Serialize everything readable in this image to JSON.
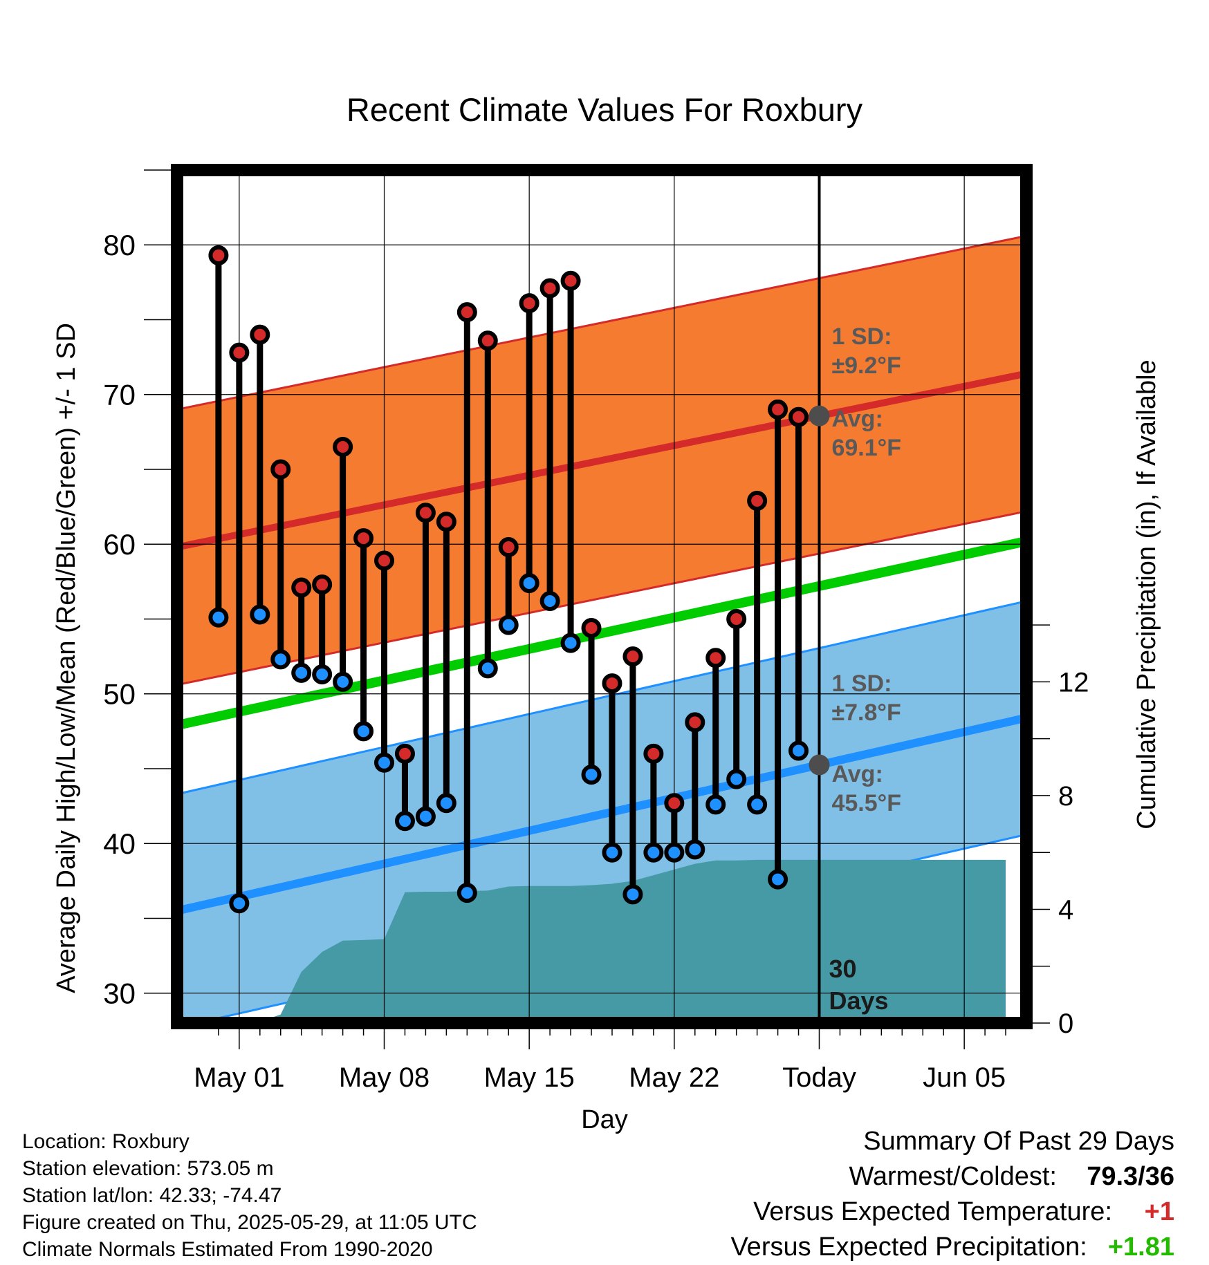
{
  "chart_data": {
    "type": "line",
    "title": "Recent Climate Values For Roxbury",
    "xlabel": "Day",
    "ylabel_left": "Average Daily High/Low/Mean (Red/Blue/Green) +/- 1 SD",
    "ylabel_right": "Cumulative Precipitation (in), If Available",
    "ylim_left": [
      28,
      85
    ],
    "ylim_right": [
      0,
      30
    ],
    "yticks_left": [
      30,
      40,
      50,
      60,
      70,
      80
    ],
    "yticks_right": [
      0,
      4,
      8,
      12
    ],
    "grid": true,
    "x_ticks": [
      {
        "day": 3,
        "label": "May 01"
      },
      {
        "day": 10,
        "label": "May 08"
      },
      {
        "day": 17,
        "label": "May 15"
      },
      {
        "day": 24,
        "label": "May 22"
      },
      {
        "day": 31,
        "label": "Today"
      },
      {
        "day": 38,
        "label": "Jun 05"
      }
    ],
    "today_day": 31,
    "today_marker_label": [
      "30",
      "Days"
    ],
    "daily_highs_lows": [
      {
        "day": 2,
        "high": 79.3,
        "low": 55.1
      },
      {
        "day": 3,
        "high": 72.8,
        "low": 36.0
      },
      {
        "day": 4,
        "high": 74.0,
        "low": 55.3
      },
      {
        "day": 5,
        "high": 65.0,
        "low": 52.3
      },
      {
        "day": 6,
        "high": 57.1,
        "low": 51.4
      },
      {
        "day": 7,
        "high": 57.3,
        "low": 51.3
      },
      {
        "day": 8,
        "high": 66.5,
        "low": 50.8
      },
      {
        "day": 9,
        "high": 60.4,
        "low": 47.5
      },
      {
        "day": 10,
        "high": 58.9,
        "low": 45.4
      },
      {
        "day": 11,
        "high": 46.0,
        "low": 41.5
      },
      {
        "day": 12,
        "high": 62.1,
        "low": 41.8
      },
      {
        "day": 13,
        "high": 61.5,
        "low": 42.7
      },
      {
        "day": 14,
        "high": 75.5,
        "low": 36.7
      },
      {
        "day": 15,
        "high": 73.6,
        "low": 51.7
      },
      {
        "day": 16,
        "high": 59.8,
        "low": 54.6
      },
      {
        "day": 17,
        "high": 76.1,
        "low": 57.4
      },
      {
        "day": 18,
        "high": 77.1,
        "low": 56.2
      },
      {
        "day": 19,
        "high": 77.6,
        "low": 53.4
      },
      {
        "day": 20,
        "high": 54.4,
        "low": 44.6
      },
      {
        "day": 21,
        "high": 50.7,
        "low": 39.4
      },
      {
        "day": 22,
        "high": 52.5,
        "low": 36.6
      },
      {
        "day": 23,
        "high": 46.0,
        "low": 39.4
      },
      {
        "day": 24,
        "high": 42.7,
        "low": 39.4
      },
      {
        "day": 25,
        "high": 48.1,
        "low": 39.6
      },
      {
        "day": 26,
        "high": 52.4,
        "low": 42.6
      },
      {
        "day": 27,
        "high": 55.0,
        "low": 44.3
      },
      {
        "day": 28,
        "high": 62.9,
        "low": 42.6
      },
      {
        "day": 29,
        "high": 69.0,
        "low": 37.6
      },
      {
        "day": 30,
        "high": 68.5,
        "low": 46.2
      }
    ],
    "normal_high": {
      "start": 59.8,
      "end": 71.4,
      "sd": 9.2
    },
    "normal_low": {
      "start": 35.5,
      "end": 48.4,
      "sd": 7.8
    },
    "normal_mean": {
      "start": 47.9,
      "end": 60.2
    },
    "cumulative_precip": [
      {
        "day": 3,
        "value": 0.0
      },
      {
        "day": 4,
        "value": 0.05
      },
      {
        "day": 5,
        "value": 0.3
      },
      {
        "day": 6,
        "value": 1.8
      },
      {
        "day": 7,
        "value": 2.5
      },
      {
        "day": 8,
        "value": 2.9
      },
      {
        "day": 9,
        "value": 2.92
      },
      {
        "day": 10,
        "value": 2.95
      },
      {
        "day": 11,
        "value": 4.6
      },
      {
        "day": 12,
        "value": 4.62
      },
      {
        "day": 13,
        "value": 4.62
      },
      {
        "day": 14,
        "value": 4.64
      },
      {
        "day": 15,
        "value": 4.66
      },
      {
        "day": 16,
        "value": 4.8
      },
      {
        "day": 17,
        "value": 4.82
      },
      {
        "day": 18,
        "value": 4.82
      },
      {
        "day": 19,
        "value": 4.82
      },
      {
        "day": 20,
        "value": 4.85
      },
      {
        "day": 21,
        "value": 4.9
      },
      {
        "day": 22,
        "value": 5.0
      },
      {
        "day": 23,
        "value": 5.2
      },
      {
        "day": 24,
        "value": 5.4
      },
      {
        "day": 25,
        "value": 5.6
      },
      {
        "day": 26,
        "value": 5.72
      },
      {
        "day": 27,
        "value": 5.72
      },
      {
        "day": 28,
        "value": 5.74
      },
      {
        "day": 29,
        "value": 5.74
      },
      {
        "day": 30,
        "value": 5.74
      },
      {
        "day": 40,
        "value": 5.74
      }
    ],
    "annotations": {
      "high_sd": [
        "1 SD:",
        "±9.2°F"
      ],
      "high_avg": [
        "Avg:",
        "69.1°F"
      ],
      "low_sd": [
        "1 SD:",
        "±7.8°F"
      ],
      "low_avg": [
        "Avg:",
        "45.5°F"
      ]
    },
    "colors": {
      "high_band": "#f47b30",
      "high_line": "#d42a2a",
      "low_band": "#80bfe6",
      "low_line": "#1e90ff",
      "mean_line": "#00cc00",
      "precip": "#469aa5",
      "high_dot": "#d42a2a",
      "low_dot": "#1e90ff",
      "avg_dot": "#4d4d4d",
      "annotation_text": "#595959"
    }
  },
  "footer": {
    "location": "Location: Roxbury",
    "elevation": "Station elevation: 573.05 m",
    "latlon": "Station lat/lon: 42.33; -74.47",
    "created": "Figure created on Thu, 2025-05-29, at 11:05 UTC",
    "normals": "Climate Normals Estimated From 1990-2020"
  },
  "summary": {
    "title": "Summary Of Past 29 Days",
    "warmest_label": "Warmest/Coldest:",
    "warmest_value": "79.3/36",
    "temp_label": "Versus Expected Temperature:",
    "temp_value": "+1",
    "temp_color": "#d42a2a",
    "precip_label": "Versus Expected Precipitation:",
    "precip_value": "+1.81",
    "precip_color": "#22bb00"
  }
}
